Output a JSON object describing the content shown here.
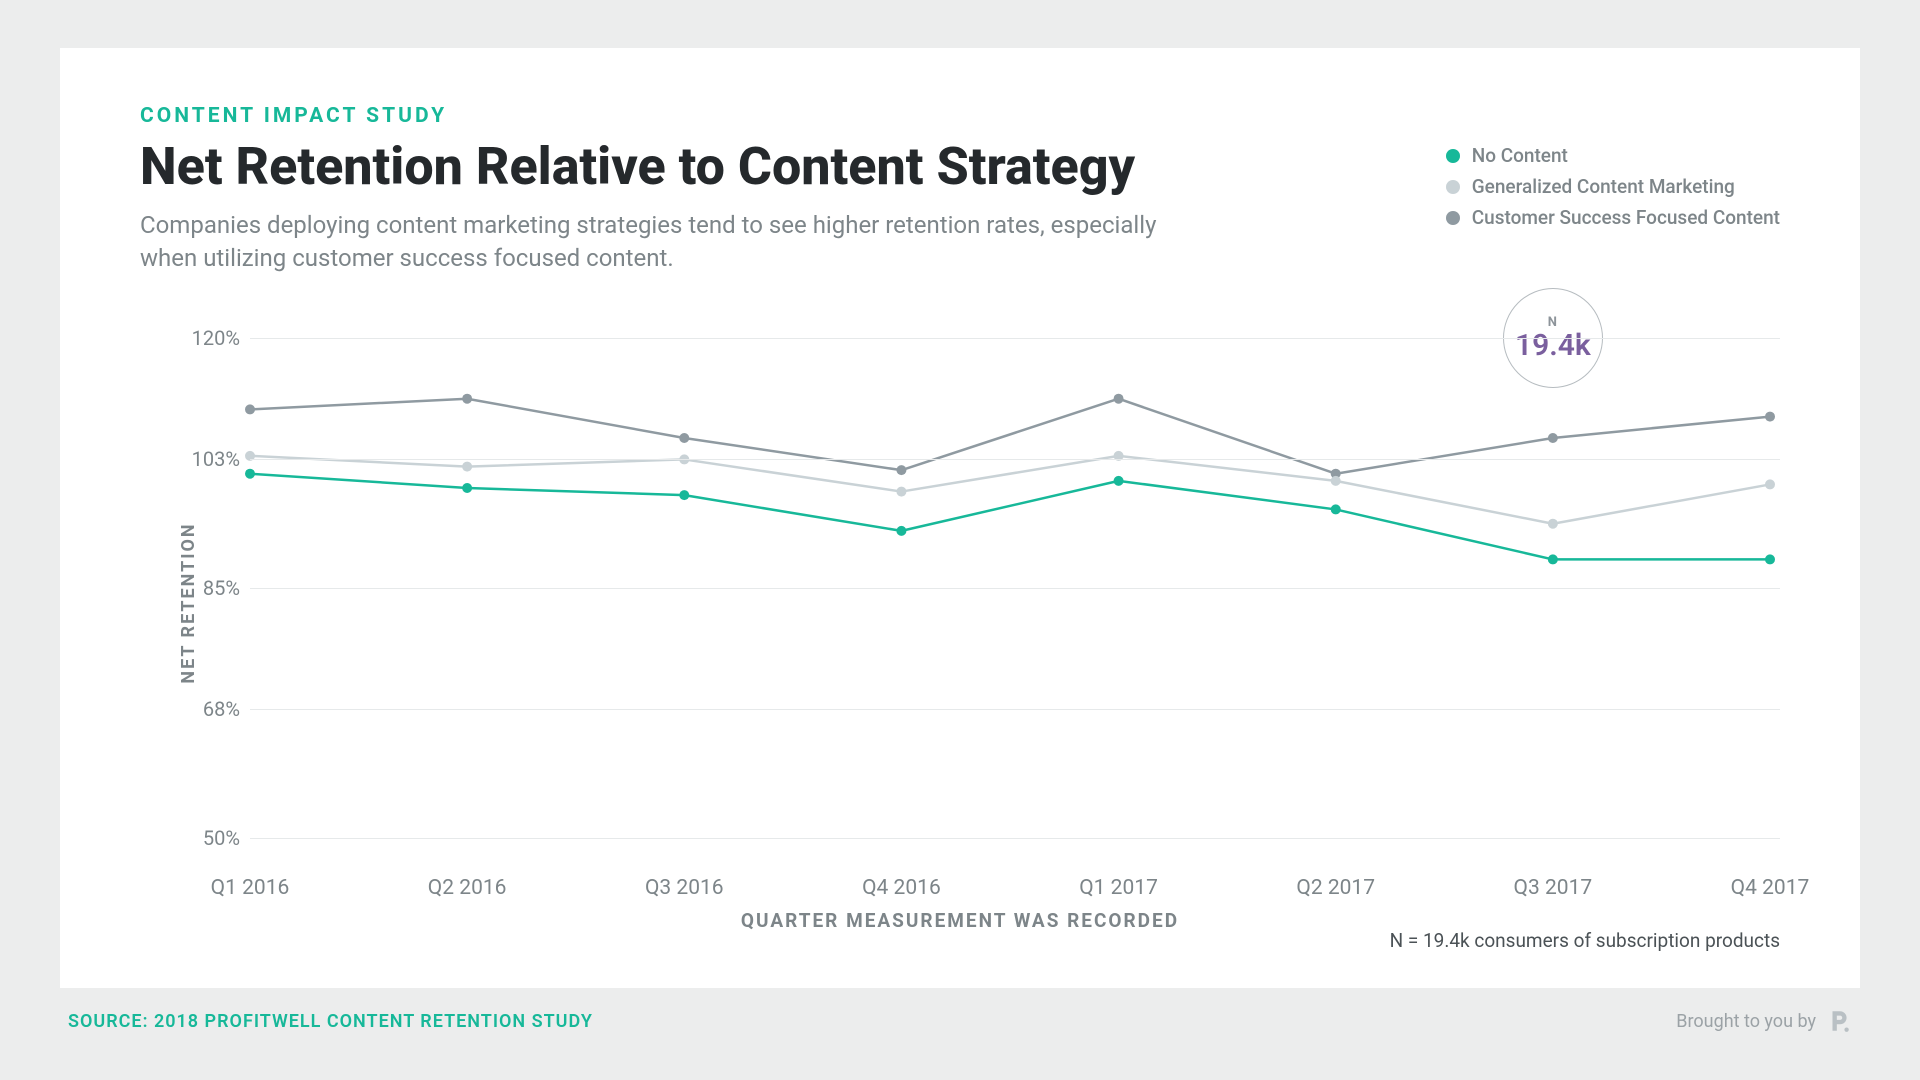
{
  "eyebrow": "CONTENT IMPACT STUDY",
  "title": "Net Retention Relative to Content Strategy",
  "subtitle": "Companies deploying content marketing strategies tend to see higher retention rates, especially when utilizing customer success focused content.",
  "legend": {
    "items": [
      {
        "label": "No Content",
        "color": "#17b899"
      },
      {
        "label": "Generalized Content Marketing",
        "color": "#c9d2d6"
      },
      {
        "label": "Customer Success Focused Content",
        "color": "#8f9aa1"
      }
    ]
  },
  "chart": {
    "type": "line",
    "ylabel": "NET RETENTION",
    "xlabel": "QUARTER MEASUREMENT WAS RECORDED",
    "ylim": [
      50,
      120
    ],
    "yticks": [
      120,
      103,
      85,
      68,
      50
    ],
    "ytick_labels": [
      "120%",
      "103%",
      "85%",
      "68%",
      "50%"
    ],
    "categories": [
      "Q1 2016",
      "Q2 2016",
      "Q3 2016",
      "Q4 2016",
      "Q1 2017",
      "Q2 2017",
      "Q3 2017",
      "Q4 2017"
    ],
    "series": [
      {
        "name": "Customer Success Focused Content",
        "color": "#8f9aa1",
        "line_width": 2.5,
        "marker_radius": 5,
        "values": [
          110,
          111.5,
          106,
          101.5,
          111.5,
          101,
          106,
          109
        ]
      },
      {
        "name": "Generalized Content Marketing",
        "color": "#c9d2d6",
        "line_width": 2.5,
        "marker_radius": 5,
        "values": [
          103.5,
          102,
          103,
          98.5,
          103.5,
          100,
          94,
          99.5
        ]
      },
      {
        "name": "No Content",
        "color": "#17b899",
        "line_width": 2.5,
        "marker_radius": 5,
        "values": [
          101,
          99,
          98,
          93,
          100,
          96,
          89,
          89
        ]
      }
    ],
    "grid_color": "#e6e9ea",
    "background_color": "#ffffff",
    "axis_label_color": "#7d8589",
    "axis_label_fontsize": 18,
    "tick_fontsize": 20
  },
  "n_badge": {
    "n_label": "N",
    "value": "19.4k",
    "value_color": "#7a5f9e",
    "position_x_index": 6.0
  },
  "footnote": "N = 19.4k consumers of subscription products",
  "source": "SOURCE: 2018 PROFITWELL CONTENT RETENTION STUDY",
  "brought_by": "Brought to you by"
}
